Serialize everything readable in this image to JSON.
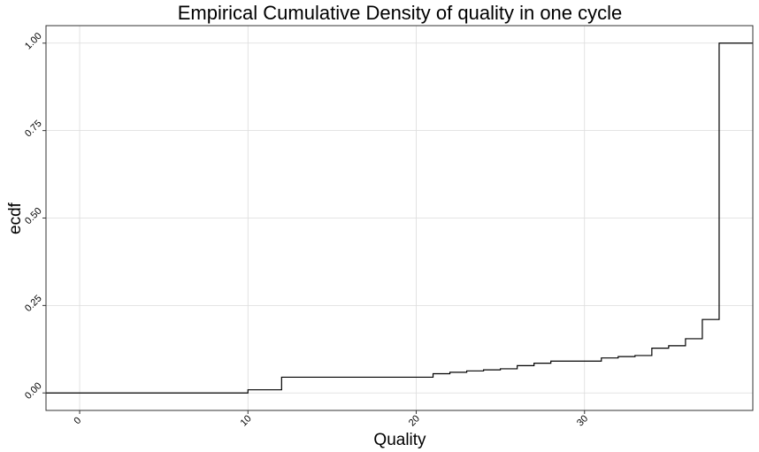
{
  "chart_data": {
    "type": "line",
    "style": "step",
    "title": "Empirical Cumulative Density of quality in one cycle",
    "xlabel": "Quality",
    "ylabel": "ecdf",
    "xlim": [
      -2,
      40
    ],
    "ylim": [
      -0.05,
      1.05
    ],
    "x_ticks": [
      0,
      10,
      20,
      30
    ],
    "x_tick_labels": [
      "0",
      "10",
      "20",
      "30"
    ],
    "y_ticks": [
      0,
      0.25,
      0.5,
      0.75,
      1
    ],
    "y_tick_labels": [
      "0.00",
      "0.25",
      "0.50",
      "0.75",
      "1.00"
    ],
    "grid": true,
    "legend": "none",
    "series": [
      {
        "x": [
          -2,
          10,
          12,
          21,
          22,
          23,
          24,
          25,
          26,
          27,
          28,
          31,
          32,
          33,
          34,
          35,
          36,
          37,
          38,
          40
        ],
        "y": [
          0,
          0.009,
          0.045,
          0.055,
          0.059,
          0.063,
          0.066,
          0.069,
          0.078,
          0.085,
          0.091,
          0.1,
          0.104,
          0.107,
          0.128,
          0.135,
          0.155,
          0.21,
          1,
          1
        ]
      }
    ]
  }
}
